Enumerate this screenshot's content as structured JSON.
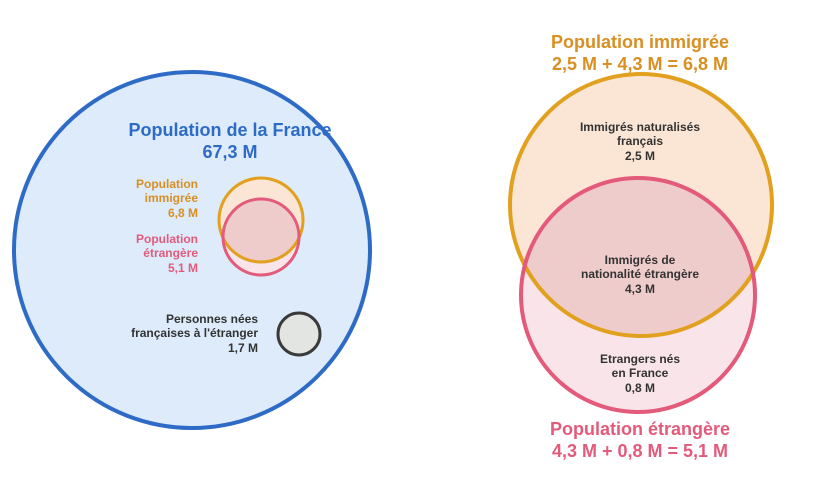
{
  "colors": {
    "blue": "#2e6bc6",
    "blue_fill": "#ddebfb",
    "orange": "#e2a01f",
    "orange_fill": "#fbe6d5",
    "pink": "#e35a7b",
    "pink_fill": "#f8e4e9",
    "overlap_fill": "#efcccc",
    "gray": "#3a3a3a",
    "gray_fill": "#e3e5e2"
  },
  "left": {
    "france": {
      "title": "Population de la France",
      "value": "67,3 M"
    },
    "immigree": {
      "line1": "Population",
      "line2": "immigrée",
      "value": "6,8 M"
    },
    "etrangere": {
      "line1": "Population",
      "line2": "étrangère",
      "value": "5,1 M"
    },
    "nees": {
      "line1": "Personnes nées",
      "line2": "françaises à l'étranger",
      "value": "1,7 M"
    }
  },
  "right": {
    "immigree_title": "Population immigrée",
    "immigree_formula": "2,5 M + 4,3 M = 6,8 M",
    "naturalises": {
      "line1": "Immigrés naturalisés",
      "line2": "français",
      "value": "2,5 M"
    },
    "nationalite": {
      "line1": "Immigrés de",
      "line2": "nationalité étrangère",
      "value": "4,3 M"
    },
    "nes_france": {
      "line1": "Etrangers nés",
      "line2": "en France",
      "value": "0,8 M"
    },
    "etrangere_title": "Population étrangère",
    "etrangere_formula": "4,3 M + 0,8 M = 5,1 M"
  }
}
